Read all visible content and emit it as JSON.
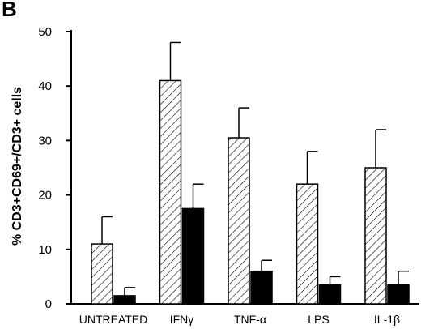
{
  "panel_label": "B",
  "chart_data": {
    "type": "bar",
    "ylabel": "% CD3+CD69+/CD3+ cells",
    "xlabel": "",
    "ylim": [
      0,
      50
    ],
    "yticks": [
      0,
      10,
      20,
      30,
      40,
      50
    ],
    "categories": [
      "UNTREATED",
      "IFNγ",
      "TNF-α",
      "LPS",
      "IL-1β"
    ],
    "series": [
      {
        "pattern": "hatched",
        "values": [
          11,
          41,
          30.5,
          22,
          25
        ],
        "errors": [
          5,
          7,
          5.5,
          6,
          7
        ]
      },
      {
        "pattern": "solid",
        "values": [
          1.5,
          17.5,
          6,
          3.5,
          3.5
        ],
        "errors": [
          1.5,
          4.5,
          2,
          1.5,
          2.5
        ]
      }
    ],
    "error_bars": "upper",
    "grid": false,
    "legend": "none"
  }
}
